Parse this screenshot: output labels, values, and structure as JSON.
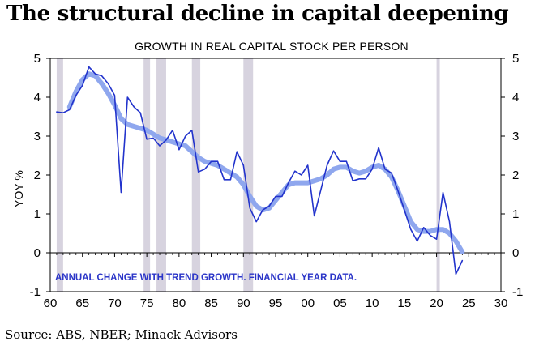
{
  "headline": "The structural decline in capital deepening",
  "source": "Source: ABS, NBER; Minack Advisors",
  "chart_data": {
    "type": "line",
    "title": "GROWTH IN REAL CAPITAL STOCK PER PERSON",
    "ylabel": "YOY %",
    "annotation": "ANNUAL CHANGE WITH TREND GROWTH.  FINANCIAL YEAR DATA.",
    "xlim": [
      60,
      30
    ],
    "ylim": [
      -1,
      5
    ],
    "x_ticks": [
      "60",
      "65",
      "70",
      "75",
      "80",
      "85",
      "90",
      "95",
      "00",
      "05",
      "10",
      "15",
      "20",
      "25",
      "30"
    ],
    "y_ticks": [
      "-1",
      "0",
      "1",
      "2",
      "3",
      "4",
      "5"
    ],
    "recessions": [
      [
        1961,
        1962
      ],
      [
        1974.5,
        1975.5
      ],
      [
        1976.5,
        1978
      ],
      [
        1982,
        1983.3
      ],
      [
        1990,
        1991.5
      ],
      [
        2020,
        2020.5
      ]
    ],
    "series": [
      {
        "name": "",
        "color": "#2233cc",
        "x": [
          1961,
          1962,
          1963,
          1964,
          1965,
          1966,
          1967,
          1968,
          1969,
          1970,
          1971,
          1972,
          1973,
          1974,
          1975,
          1976,
          1977,
          1978,
          1979,
          1980,
          1981,
          1982,
          1983,
          1984,
          1985,
          1986,
          1987,
          1988,
          1989,
          1990,
          1991,
          1992,
          1993,
          1994,
          1995,
          1996,
          1997,
          1998,
          1999,
          2000,
          2001,
          2002,
          2003,
          2004,
          2005,
          2006,
          2007,
          2008,
          2009,
          2010,
          2011,
          2012,
          2013,
          2014,
          2015,
          2016,
          2017,
          2018,
          2019,
          2020,
          2021,
          2022,
          2023,
          2024
        ],
        "values": [
          3.62,
          3.6,
          3.68,
          4.05,
          4.3,
          4.78,
          4.6,
          4.55,
          4.35,
          4.05,
          1.55,
          4.0,
          3.75,
          3.6,
          2.92,
          2.95,
          2.75,
          2.9,
          3.15,
          2.65,
          3.0,
          3.15,
          2.08,
          2.15,
          2.35,
          2.35,
          1.88,
          1.88,
          2.6,
          2.25,
          1.15,
          0.8,
          1.1,
          1.2,
          1.45,
          1.45,
          1.8,
          2.1,
          2.0,
          2.25,
          0.95,
          1.6,
          2.25,
          2.62,
          2.35,
          2.35,
          1.85,
          1.9,
          1.9,
          2.15,
          2.7,
          2.15,
          2.05,
          1.6,
          1.1,
          0.6,
          0.3,
          0.65,
          0.45,
          0.35,
          1.55,
          0.8,
          -0.55,
          -0.2
        ]
      },
      {
        "name": "",
        "color": "#8fa7ee",
        "x": [
          1963,
          1964,
          1965,
          1966,
          1967,
          1968,
          1969,
          1970,
          1971,
          1972,
          1973,
          1974,
          1975,
          1976,
          1977,
          1978,
          1979,
          1980,
          1981,
          1982,
          1983,
          1984,
          1985,
          1986,
          1987,
          1988,
          1989,
          1990,
          1991,
          1992,
          1993,
          1994,
          1995,
          1996,
          1997,
          1998,
          1999,
          2000,
          2001,
          2002,
          2003,
          2004,
          2005,
          2006,
          2007,
          2008,
          2009,
          2010,
          2011,
          2012,
          2013,
          2014,
          2015,
          2016,
          2017,
          2018,
          2019,
          2020,
          2021,
          2022,
          2023,
          2024
        ],
        "values": [
          3.75,
          4.15,
          4.45,
          4.6,
          4.55,
          4.35,
          4.1,
          3.8,
          3.45,
          3.3,
          3.25,
          3.2,
          3.15,
          3.05,
          2.95,
          2.9,
          2.85,
          2.8,
          2.75,
          2.6,
          2.45,
          2.35,
          2.3,
          2.25,
          2.15,
          2.05,
          1.95,
          1.75,
          1.45,
          1.2,
          1.1,
          1.15,
          1.35,
          1.55,
          1.75,
          1.8,
          1.8,
          1.8,
          1.85,
          1.9,
          2.0,
          2.15,
          2.2,
          2.2,
          2.1,
          2.05,
          2.1,
          2.2,
          2.25,
          2.15,
          1.95,
          1.6,
          1.2,
          0.8,
          0.6,
          0.55,
          0.55,
          0.6,
          0.6,
          0.5,
          0.3,
          0.02
        ]
      }
    ]
  }
}
